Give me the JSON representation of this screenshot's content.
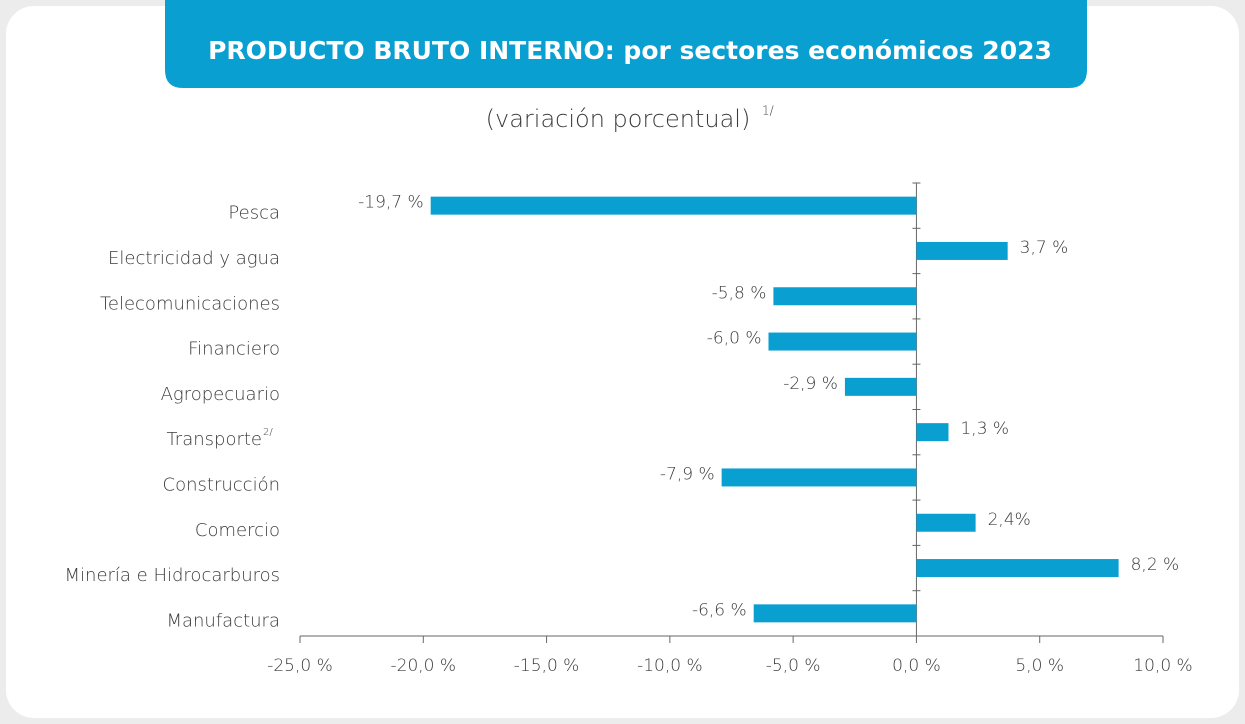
{
  "chart_data": {
    "type": "bar",
    "orientation": "horizontal",
    "title": "PRODUCTO BRUTO INTERNO: por sectores económicos 2023",
    "subtitle": "(variación porcentual)",
    "subtitle_note": "1/",
    "categories": [
      "Pesca",
      "Electricidad y agua",
      "Telecomunicaciones",
      "Financiero",
      "Agropecuario",
      "Transporte",
      "Construcción",
      "Comercio",
      "Minería e Hidrocarburos",
      "Manufactura"
    ],
    "category_notes": [
      null,
      null,
      null,
      null,
      null,
      "2/",
      null,
      null,
      null,
      null
    ],
    "values": [
      -19.7,
      3.7,
      -5.8,
      -6.0,
      -2.9,
      1.3,
      -7.9,
      2.4,
      8.2,
      -6.6
    ],
    "value_labels": [
      "-19,7 %",
      "3,7 %",
      "-5,8 %",
      "-6,0 %",
      "-2,9 %",
      "1,3 %",
      "-7,9 %",
      "2,4%",
      "8,2 %",
      "-6,6 %"
    ],
    "color": "#0a9fd1",
    "xlim": [
      -25,
      10
    ],
    "xticks": [
      {
        "value": -25,
        "label": "-25,0 %"
      },
      {
        "value": -20,
        "label": "-20,0 %"
      },
      {
        "value": -15,
        "label": "-15,0 %"
      },
      {
        "value": -10,
        "label": "-10,0 %"
      },
      {
        "value": -5,
        "label": "-5,0 %"
      },
      {
        "value": 0,
        "label": "0,0 %"
      },
      {
        "value": 5,
        "label": "5,0 %"
      },
      {
        "value": 10,
        "label": "10,0 %"
      }
    ]
  }
}
